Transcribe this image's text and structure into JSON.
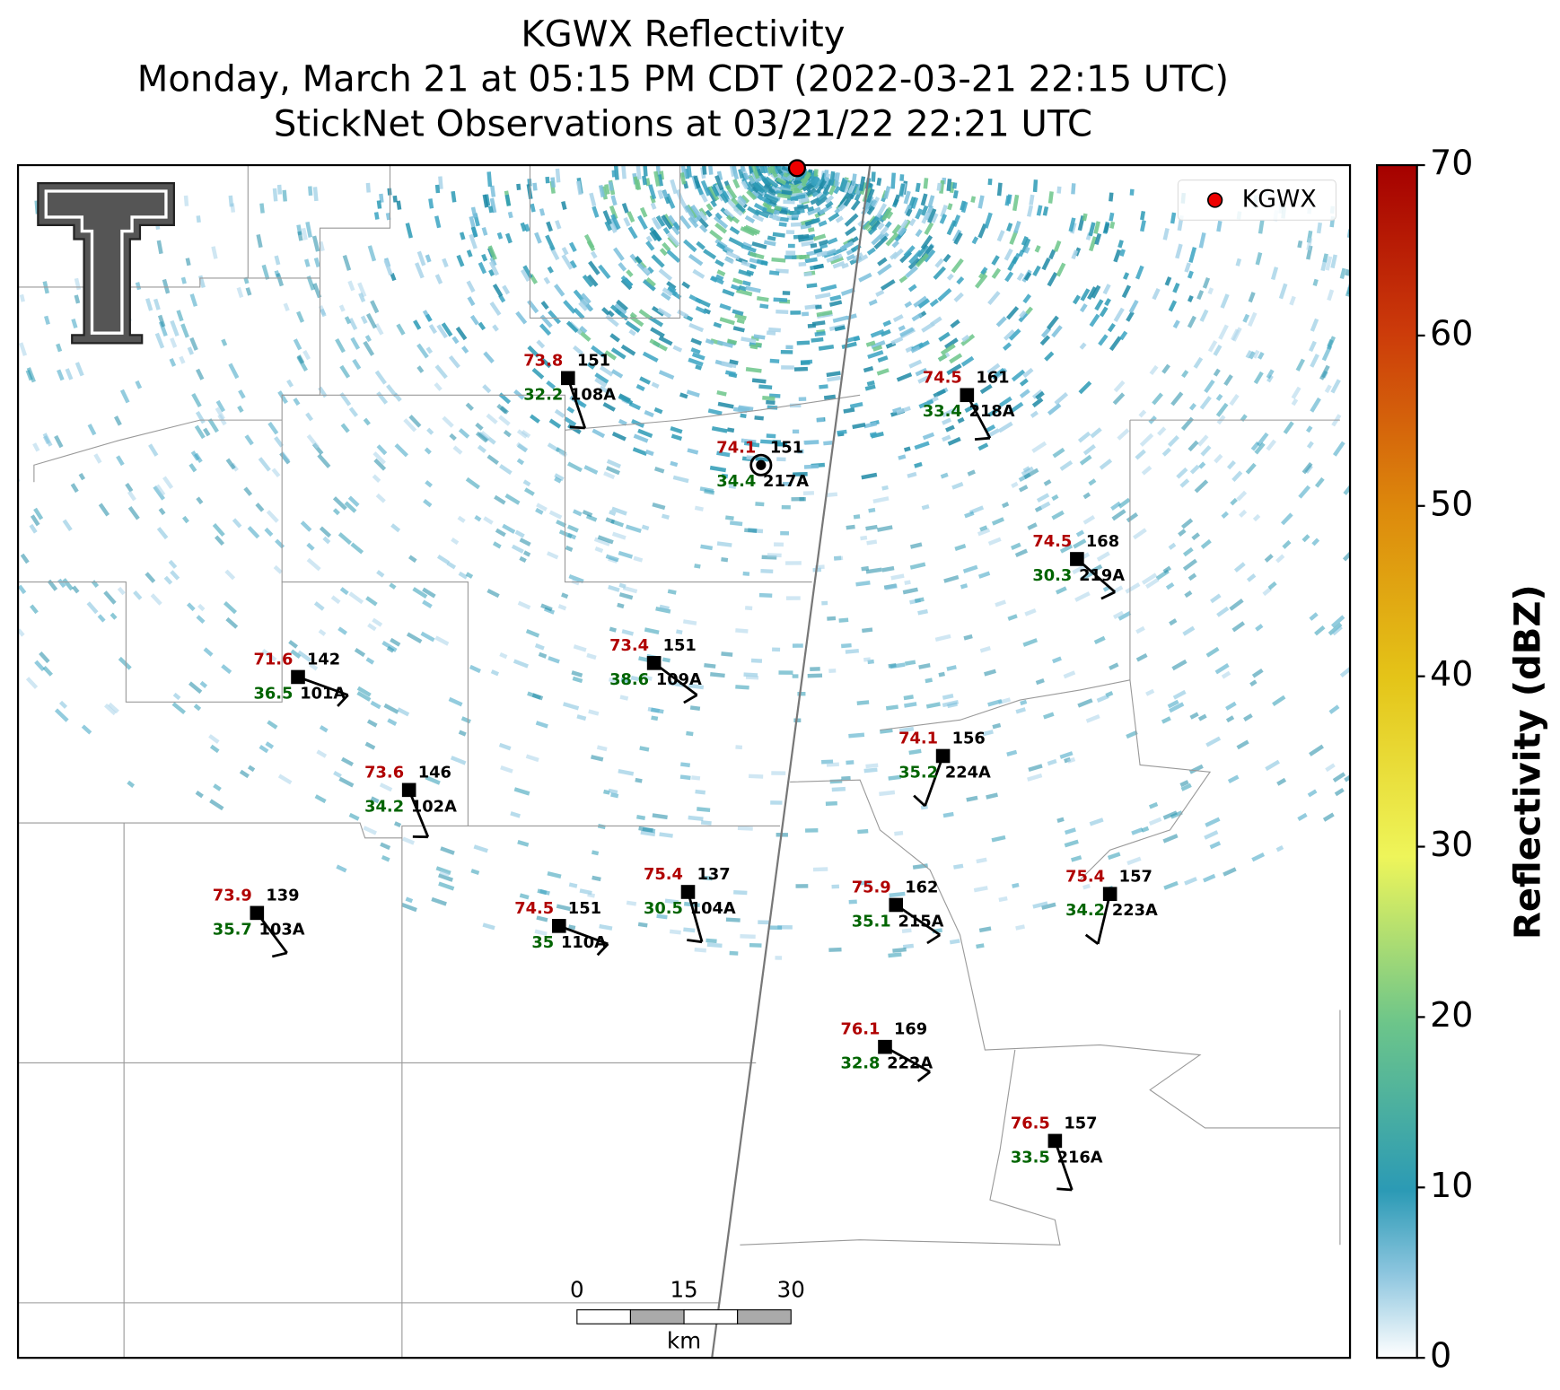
{
  "title_lines": [
    "KGWX Reflectivity",
    "Monday, March 21 at 05:15 PM CDT (2022-03-21 22:15 UTC)",
    "StickNet Observations at 03/21/22 22:21 UTC"
  ],
  "legend": {
    "label": "KGWX"
  },
  "colorbar": {
    "label": "Reflectivity (dBZ)",
    "lim": [
      0,
      70
    ],
    "ticks": [
      0,
      10,
      20,
      30,
      40,
      50,
      60,
      70
    ]
  },
  "scale_bar": {
    "ticks": [
      0,
      15,
      30
    ],
    "unit": "km"
  },
  "stations": [
    {
      "id": "108A",
      "temperature": 73.8,
      "dewpoint": 32.2,
      "value": 151
    },
    {
      "id": "218A",
      "temperature": 74.5,
      "dewpoint": 33.4,
      "value": 161
    },
    {
      "id": "217A",
      "temperature": 74.1,
      "dewpoint": 34.4,
      "value": 151
    },
    {
      "id": "219A",
      "temperature": 74.5,
      "dewpoint": 30.3,
      "value": 168
    },
    {
      "id": "101A",
      "temperature": 71.6,
      "dewpoint": 36.5,
      "value": 142
    },
    {
      "id": "109A",
      "temperature": 73.4,
      "dewpoint": 38.6,
      "value": 151
    },
    {
      "id": "224A",
      "temperature": 74.1,
      "dewpoint": 35.2,
      "value": 156
    },
    {
      "id": "102A",
      "temperature": 73.6,
      "dewpoint": 34.2,
      "value": 146
    },
    {
      "id": "103A",
      "temperature": 73.9,
      "dewpoint": 35.7,
      "value": 139
    },
    {
      "id": "110A",
      "temperature": 74.5,
      "dewpoint": 35.0,
      "value": 151
    },
    {
      "id": "104A",
      "temperature": 75.4,
      "dewpoint": 30.5,
      "value": 137
    },
    {
      "id": "215A",
      "temperature": 75.9,
      "dewpoint": 35.1,
      "value": 162
    },
    {
      "id": "223A",
      "temperature": 75.4,
      "dewpoint": 34.2,
      "value": 157
    },
    {
      "id": "222A",
      "temperature": 76.1,
      "dewpoint": 32.8,
      "value": 169
    },
    {
      "id": "216A",
      "temperature": 76.5,
      "dewpoint": 33.5,
      "value": 157
    }
  ]
}
